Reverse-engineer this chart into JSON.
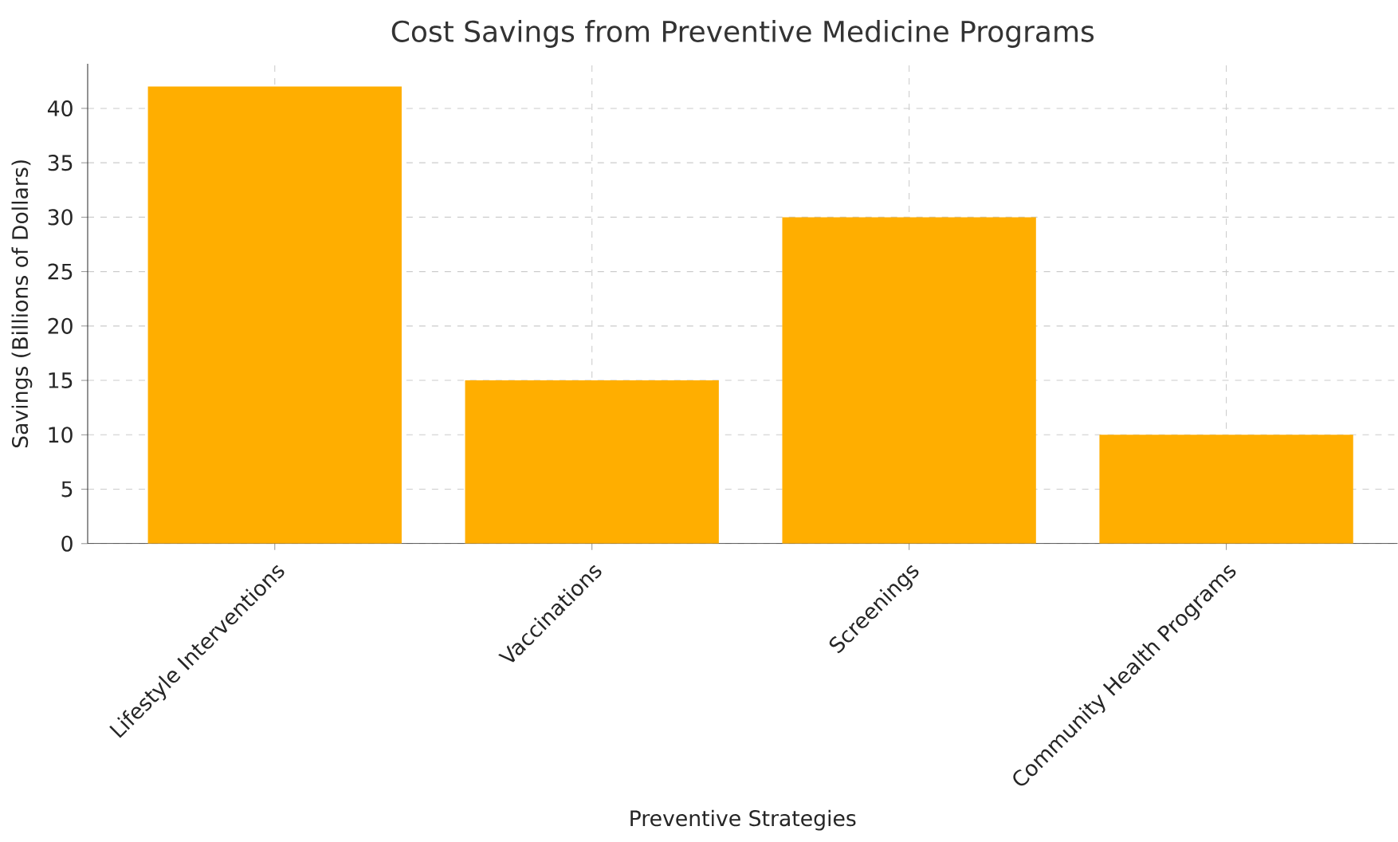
{
  "chart_data": {
    "type": "bar",
    "title": "Cost Savings from Preventive Medicine Programs",
    "xlabel": "Preventive Strategies",
    "ylabel": "Savings (Billions of Dollars)",
    "categories": [
      "Lifestyle Interventions",
      "Vaccinations",
      "Screenings",
      "Community Health Programs"
    ],
    "values": [
      42,
      15,
      30,
      10
    ],
    "color": "#ffae00",
    "ylim": [
      0,
      44.1
    ],
    "yticks": [
      0,
      5,
      10,
      15,
      20,
      25,
      30,
      35,
      40
    ],
    "grid": true
  }
}
